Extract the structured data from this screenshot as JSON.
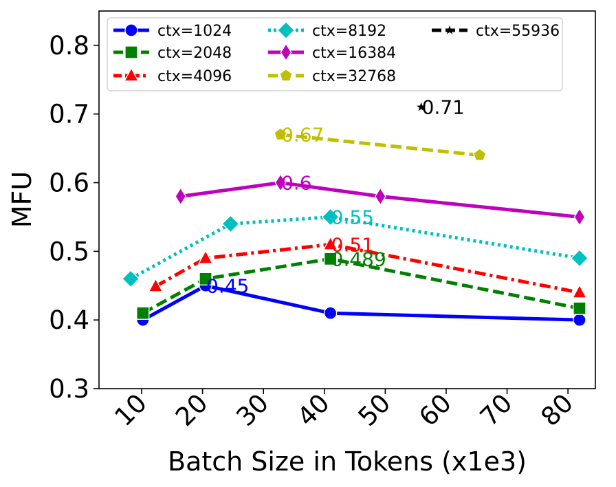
{
  "chart_data": {
    "type": "line",
    "title": "",
    "xlabel": "Batch Size in Tokens (x1e3)",
    "ylabel": "MFU",
    "xlim": [
      3,
      84.5
    ],
    "ylim": [
      0.3,
      0.85
    ],
    "xticks": [
      10,
      20,
      30,
      40,
      50,
      60,
      70,
      80
    ],
    "yticks": [
      0.3,
      0.4,
      0.5,
      0.6,
      0.7,
      0.8
    ],
    "ytick_labels": [
      "0.3",
      "0.4",
      "0.5",
      "0.6",
      "0.7",
      "0.8"
    ],
    "grid": false,
    "legend_location": "top",
    "series": [
      {
        "name": "ctx=1024",
        "color": "#0000ff",
        "dash": "solid",
        "marker": "circle",
        "x": [
          10.2,
          20.5,
          41.0,
          81.9
        ],
        "y": [
          0.4,
          0.45,
          0.41,
          0.4
        ],
        "annotation": {
          "text": "0.45",
          "x": 20.5,
          "y": 0.45
        }
      },
      {
        "name": "ctx=2048",
        "color": "#008000",
        "dash": "dashed",
        "marker": "square",
        "x": [
          10.2,
          20.5,
          41.0,
          81.9
        ],
        "y": [
          0.41,
          0.46,
          0.489,
          0.417
        ],
        "annotation": {
          "text": "0.489",
          "x": 41.0,
          "y": 0.489
        }
      },
      {
        "name": "ctx=4096",
        "color": "#ff0000",
        "dash": "dashdot",
        "marker": "triangle",
        "x": [
          12.3,
          20.5,
          41.0,
          81.9
        ],
        "y": [
          0.449,
          0.49,
          0.51,
          0.44
        ],
        "annotation": {
          "text": "0.51",
          "x": 41.0,
          "y": 0.51
        }
      },
      {
        "name": "ctx=8192",
        "color": "#00bfbf",
        "dash": "dotted",
        "marker": "diamond",
        "x": [
          8.2,
          24.6,
          41.0,
          81.9
        ],
        "y": [
          0.46,
          0.54,
          0.55,
          0.49
        ],
        "annotation": {
          "text": "0.55",
          "x": 41.0,
          "y": 0.55
        }
      },
      {
        "name": "ctx=16384",
        "color": "#bf00bf",
        "dash": "solid",
        "marker": "thin_diamond",
        "x": [
          16.4,
          32.8,
          49.2,
          81.9
        ],
        "y": [
          0.58,
          0.6,
          0.58,
          0.55
        ],
        "annotation": {
          "text": "0.6",
          "x": 32.8,
          "y": 0.6
        }
      },
      {
        "name": "ctx=32768",
        "color": "#bfbf00",
        "dash": "dashed",
        "marker": "pentagon",
        "x": [
          32.8,
          65.5
        ],
        "y": [
          0.67,
          0.64
        ],
        "annotation": {
          "text": "0.67",
          "x": 32.8,
          "y": 0.67
        }
      },
      {
        "name": "ctx=55936",
        "color": "#000000",
        "dash": "dashed",
        "marker": "star",
        "x": [
          55.9
        ],
        "y": [
          0.71
        ],
        "annotation": {
          "text": "0.71",
          "x": 55.9,
          "y": 0.71
        }
      }
    ]
  }
}
